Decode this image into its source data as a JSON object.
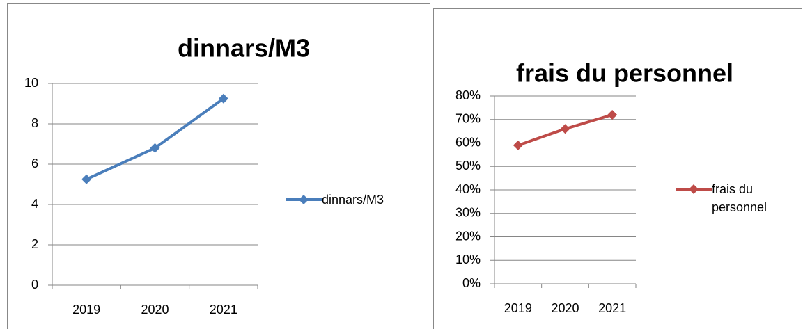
{
  "chart_data": [
    {
      "type": "line",
      "title": "dinnars/M3",
      "categories": [
        "2019",
        "2020",
        "2021"
      ],
      "series": [
        {
          "name": "dinnars/M3",
          "color": "#4a7ebb",
          "values": [
            5.25,
            6.8,
            9.25
          ]
        }
      ],
      "ylim": [
        0,
        10
      ],
      "yticks": [
        0,
        2,
        4,
        6,
        8,
        10
      ],
      "grid": true,
      "legend": "right"
    },
    {
      "type": "line",
      "title": "frais du personnel",
      "categories": [
        "2019",
        "2020",
        "2021"
      ],
      "series": [
        {
          "name": "frais du personnel",
          "color": "#be4b48",
          "values": [
            59,
            66,
            72
          ]
        }
      ],
      "ylim": [
        0,
        80
      ],
      "yticks": [
        {
          "value": 0,
          "label": "0%"
        },
        {
          "value": 10,
          "label": "10%"
        },
        {
          "value": 20,
          "label": "20%"
        },
        {
          "value": 30,
          "label": "30%"
        },
        {
          "value": 40,
          "label": "40%"
        },
        {
          "value": 50,
          "label": "50%"
        },
        {
          "value": 60,
          "label": "60%"
        },
        {
          "value": 70,
          "label": "70%"
        },
        {
          "value": 80,
          "label": "80%"
        }
      ],
      "grid": true,
      "legend": "right"
    }
  ]
}
